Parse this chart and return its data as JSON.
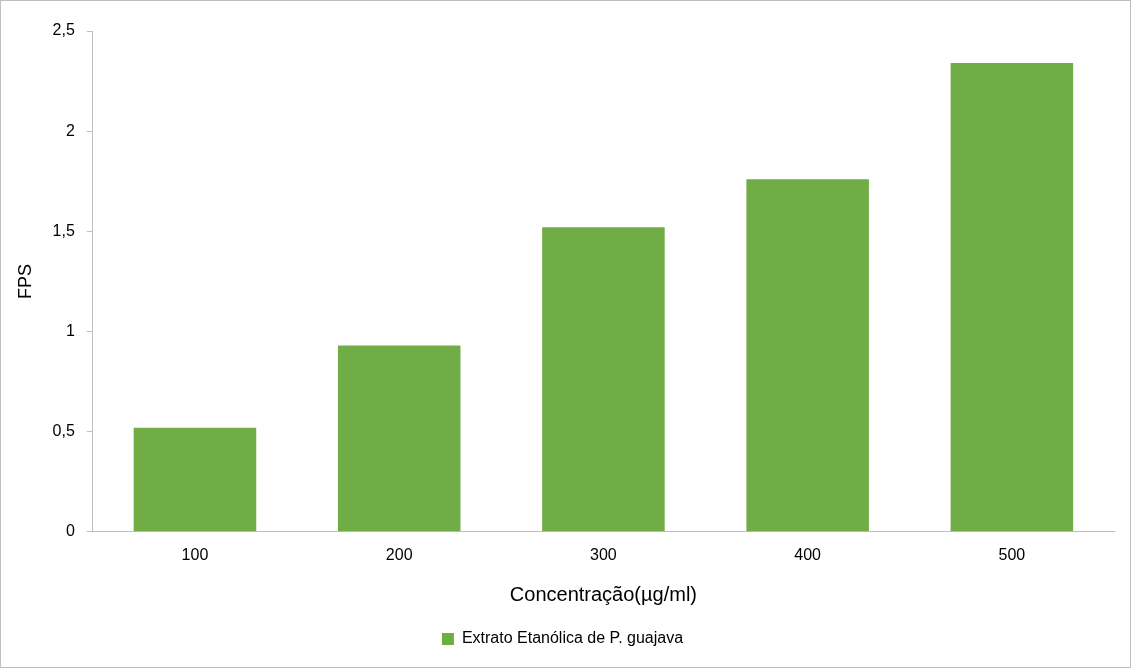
{
  "chart_data": {
    "type": "bar",
    "categories": [
      "100",
      "200",
      "300",
      "400",
      "500"
    ],
    "series": [
      {
        "name": "Extrato Etanólica de P. guajava",
        "color": "#70ad47",
        "values": [
          0.52,
          0.93,
          1.52,
          1.76,
          2.34
        ]
      }
    ],
    "xlabel": "Concentração(µg/ml)",
    "ylabel": "FPS",
    "ylim": [
      0,
      2.5
    ],
    "yticks": [
      0,
      {
        "value": 0.5,
        "label": "0,5"
      },
      1,
      {
        "value": 1.5,
        "label": "1,5"
      },
      2,
      {
        "value": 2.5,
        "label": "2,5"
      }
    ],
    "grid": false,
    "legend": "bottom"
  }
}
